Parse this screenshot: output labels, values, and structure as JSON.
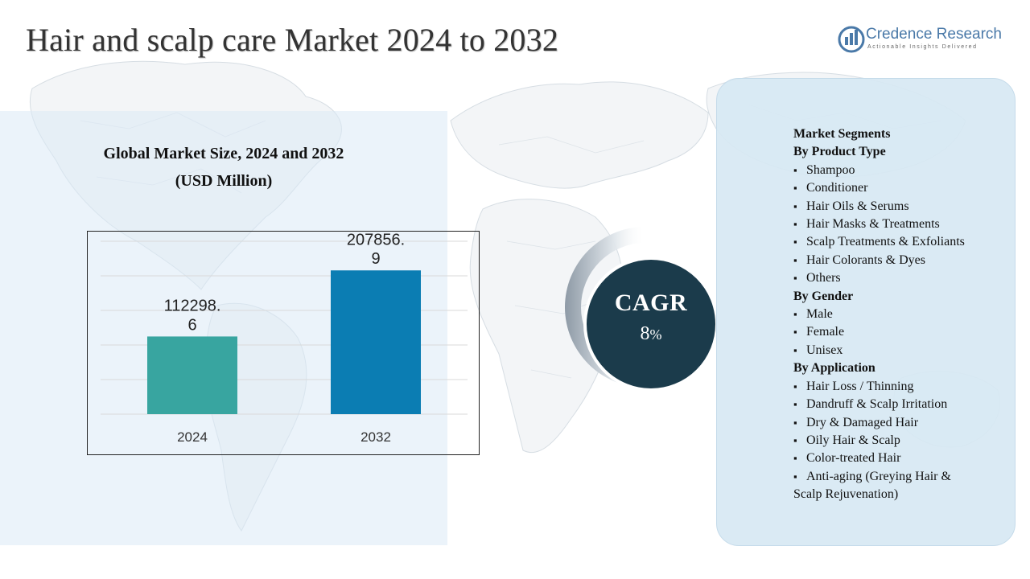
{
  "title": "Hair and scalp care Market 2024 to 2032",
  "logo": {
    "name": "Credence Research",
    "tagline": "Actionable Insights Delivered",
    "icon": "credence-logo-icon",
    "color": "#4a79a8"
  },
  "chart_title": {
    "line1": "Global Market Size, 2024 and 2032",
    "line2": "(USD Million)"
  },
  "chart_data": {
    "type": "bar",
    "categories": [
      "2024",
      "2032"
    ],
    "values": [
      112298.6,
      207856.9
    ],
    "value_labels": [
      [
        "112298.",
        "6"
      ],
      [
        "207856.",
        "9"
      ]
    ],
    "colors": [
      "#38a5a0",
      "#0b7db3"
    ],
    "title": "Global Market Size, 2024 and 2032 (USD Million)",
    "xlabel": "",
    "ylabel": "",
    "ylim": [
      0,
      250000
    ],
    "grid": true,
    "legend": "none"
  },
  "cagr": {
    "label": "CAGR",
    "value": "8",
    "unit": "%",
    "circle_color": "#1b3b4b"
  },
  "segments": {
    "heading": "Market Segments",
    "groups": [
      {
        "title": "By Product Type",
        "items": [
          "Shampoo",
          "Conditioner",
          "Hair Oils & Serums",
          "Hair Masks & Treatments",
          "Scalp Treatments & Exfoliants",
          "Hair Colorants & Dyes",
          "Others"
        ]
      },
      {
        "title": "By Gender",
        "items": [
          "Male",
          "Female",
          "Unisex"
        ]
      },
      {
        "title": "By Application",
        "items": [
          "Hair Loss / Thinning",
          "Dandruff & Scalp Irritation",
          "Dry & Damaged Hair",
          "Oily Hair & Scalp",
          "Color-treated Hair"
        ],
        "last_item_lines": [
          "Anti-aging (Greying Hair &",
          "Scalp Rejuvenation)"
        ]
      }
    ]
  }
}
